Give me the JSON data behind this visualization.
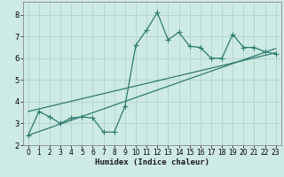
{
  "xlabel": "Humidex (Indice chaleur)",
  "xlim": [
    -0.5,
    23.5
  ],
  "ylim": [
    2,
    8.6
  ],
  "yticks": [
    2,
    3,
    4,
    5,
    6,
    7,
    8
  ],
  "xticks": [
    0,
    1,
    2,
    3,
    4,
    5,
    6,
    7,
    8,
    9,
    10,
    11,
    12,
    13,
    14,
    15,
    16,
    17,
    18,
    19,
    20,
    21,
    22,
    23
  ],
  "bg_color": "#ceeae4",
  "grid_color": "#b0d4cc",
  "line_color": "#2d7b70",
  "line1_x": [
    0,
    1,
    2,
    3,
    4,
    5,
    6,
    7,
    8,
    9,
    10,
    11,
    12,
    13,
    14,
    15,
    16,
    17,
    18,
    19,
    20,
    21,
    22,
    23
  ],
  "line1_y": [
    2.45,
    3.55,
    3.3,
    3.0,
    3.25,
    3.3,
    3.25,
    2.6,
    2.6,
    3.8,
    6.6,
    7.3,
    8.1,
    6.85,
    7.2,
    6.55,
    6.5,
    6.0,
    6.0,
    7.1,
    6.5,
    6.5,
    6.3,
    6.2
  ],
  "line2_x": [
    0,
    23
  ],
  "line2_y": [
    2.45,
    6.45
  ],
  "line3_x": [
    0,
    23
  ],
  "line3_y": [
    3.55,
    6.25
  ],
  "marker_size": 4,
  "tick_fontsize": 5.5,
  "xlabel_fontsize": 6.5
}
